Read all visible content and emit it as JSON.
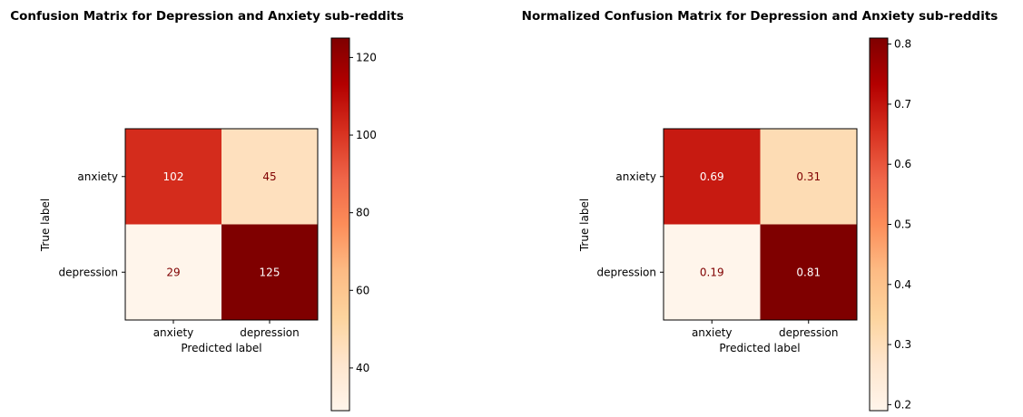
{
  "chart_data": [
    {
      "type": "heatmap",
      "title": "Confusion Matrix for Depression and Anxiety sub-reddits",
      "xlabel": "Predicted label",
      "ylabel": "True label",
      "x_categories": [
        "anxiety",
        "depression"
      ],
      "y_categories": [
        "anxiety",
        "depression"
      ],
      "values": [
        [
          102,
          45
        ],
        [
          29,
          125
        ]
      ],
      "value_labels": [
        [
          "102",
          "45"
        ],
        [
          "29",
          "125"
        ]
      ],
      "colormap": "OrRd",
      "color_range": [
        29,
        125
      ],
      "colorbar_ticks": [
        40,
        60,
        80,
        100,
        120
      ],
      "colorbar_tick_labels": [
        "40",
        "60",
        "80",
        "100",
        "120"
      ]
    },
    {
      "type": "heatmap",
      "title": "Normalized Confusion Matrix for Depression and Anxiety sub-reddits",
      "xlabel": "Predicted label",
      "ylabel": "True label",
      "x_categories": [
        "anxiety",
        "depression"
      ],
      "y_categories": [
        "anxiety",
        "depression"
      ],
      "values": [
        [
          0.69,
          0.31
        ],
        [
          0.19,
          0.81
        ]
      ],
      "value_labels": [
        [
          "0.69",
          "0.31"
        ],
        [
          "0.19",
          "0.81"
        ]
      ],
      "colormap": "OrRd",
      "color_range": [
        0.19,
        0.81
      ],
      "colorbar_ticks": [
        0.2,
        0.3,
        0.4,
        0.5,
        0.6,
        0.7,
        0.8
      ],
      "colorbar_tick_labels": [
        "0.2",
        "0.3",
        "0.4",
        "0.5",
        "0.6",
        "0.7",
        "0.8"
      ]
    }
  ]
}
